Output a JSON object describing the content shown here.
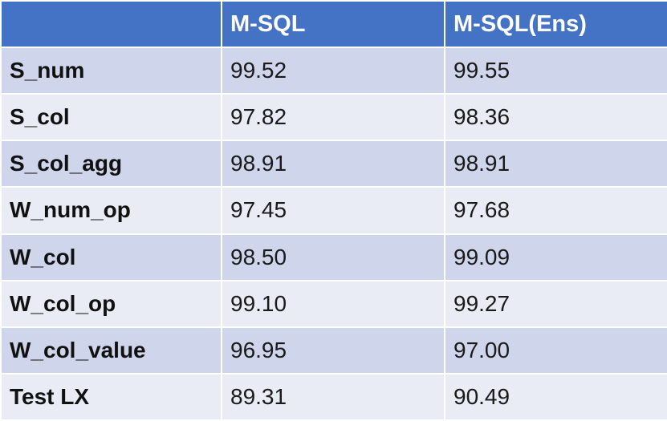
{
  "chart_data": {
    "type": "table",
    "columns": [
      "",
      "M-SQL",
      "M-SQL(Ens)"
    ],
    "rows": [
      {
        "label": "S_num",
        "values": [
          "99.52",
          "99.55"
        ]
      },
      {
        "label": "S_col",
        "values": [
          "97.82",
          "98.36"
        ]
      },
      {
        "label": "S_col_agg",
        "values": [
          "98.91",
          "98.91"
        ]
      },
      {
        "label": "W_num_op",
        "values": [
          "97.45",
          "97.68"
        ]
      },
      {
        "label": "W_col",
        "values": [
          "98.50",
          "99.09"
        ]
      },
      {
        "label": "W_col_op",
        "values": [
          "99.10",
          "99.27"
        ]
      },
      {
        "label": "W_col_value",
        "values": [
          "96.95",
          "97.00"
        ]
      },
      {
        "label": "Test LX",
        "values": [
          "89.31",
          "90.49"
        ]
      }
    ]
  },
  "colors": {
    "header_bg": "#4472c4",
    "header_text": "#ffffff",
    "row_band_dark": "#cfd5ea",
    "row_band_light": "#e9ebf5"
  }
}
